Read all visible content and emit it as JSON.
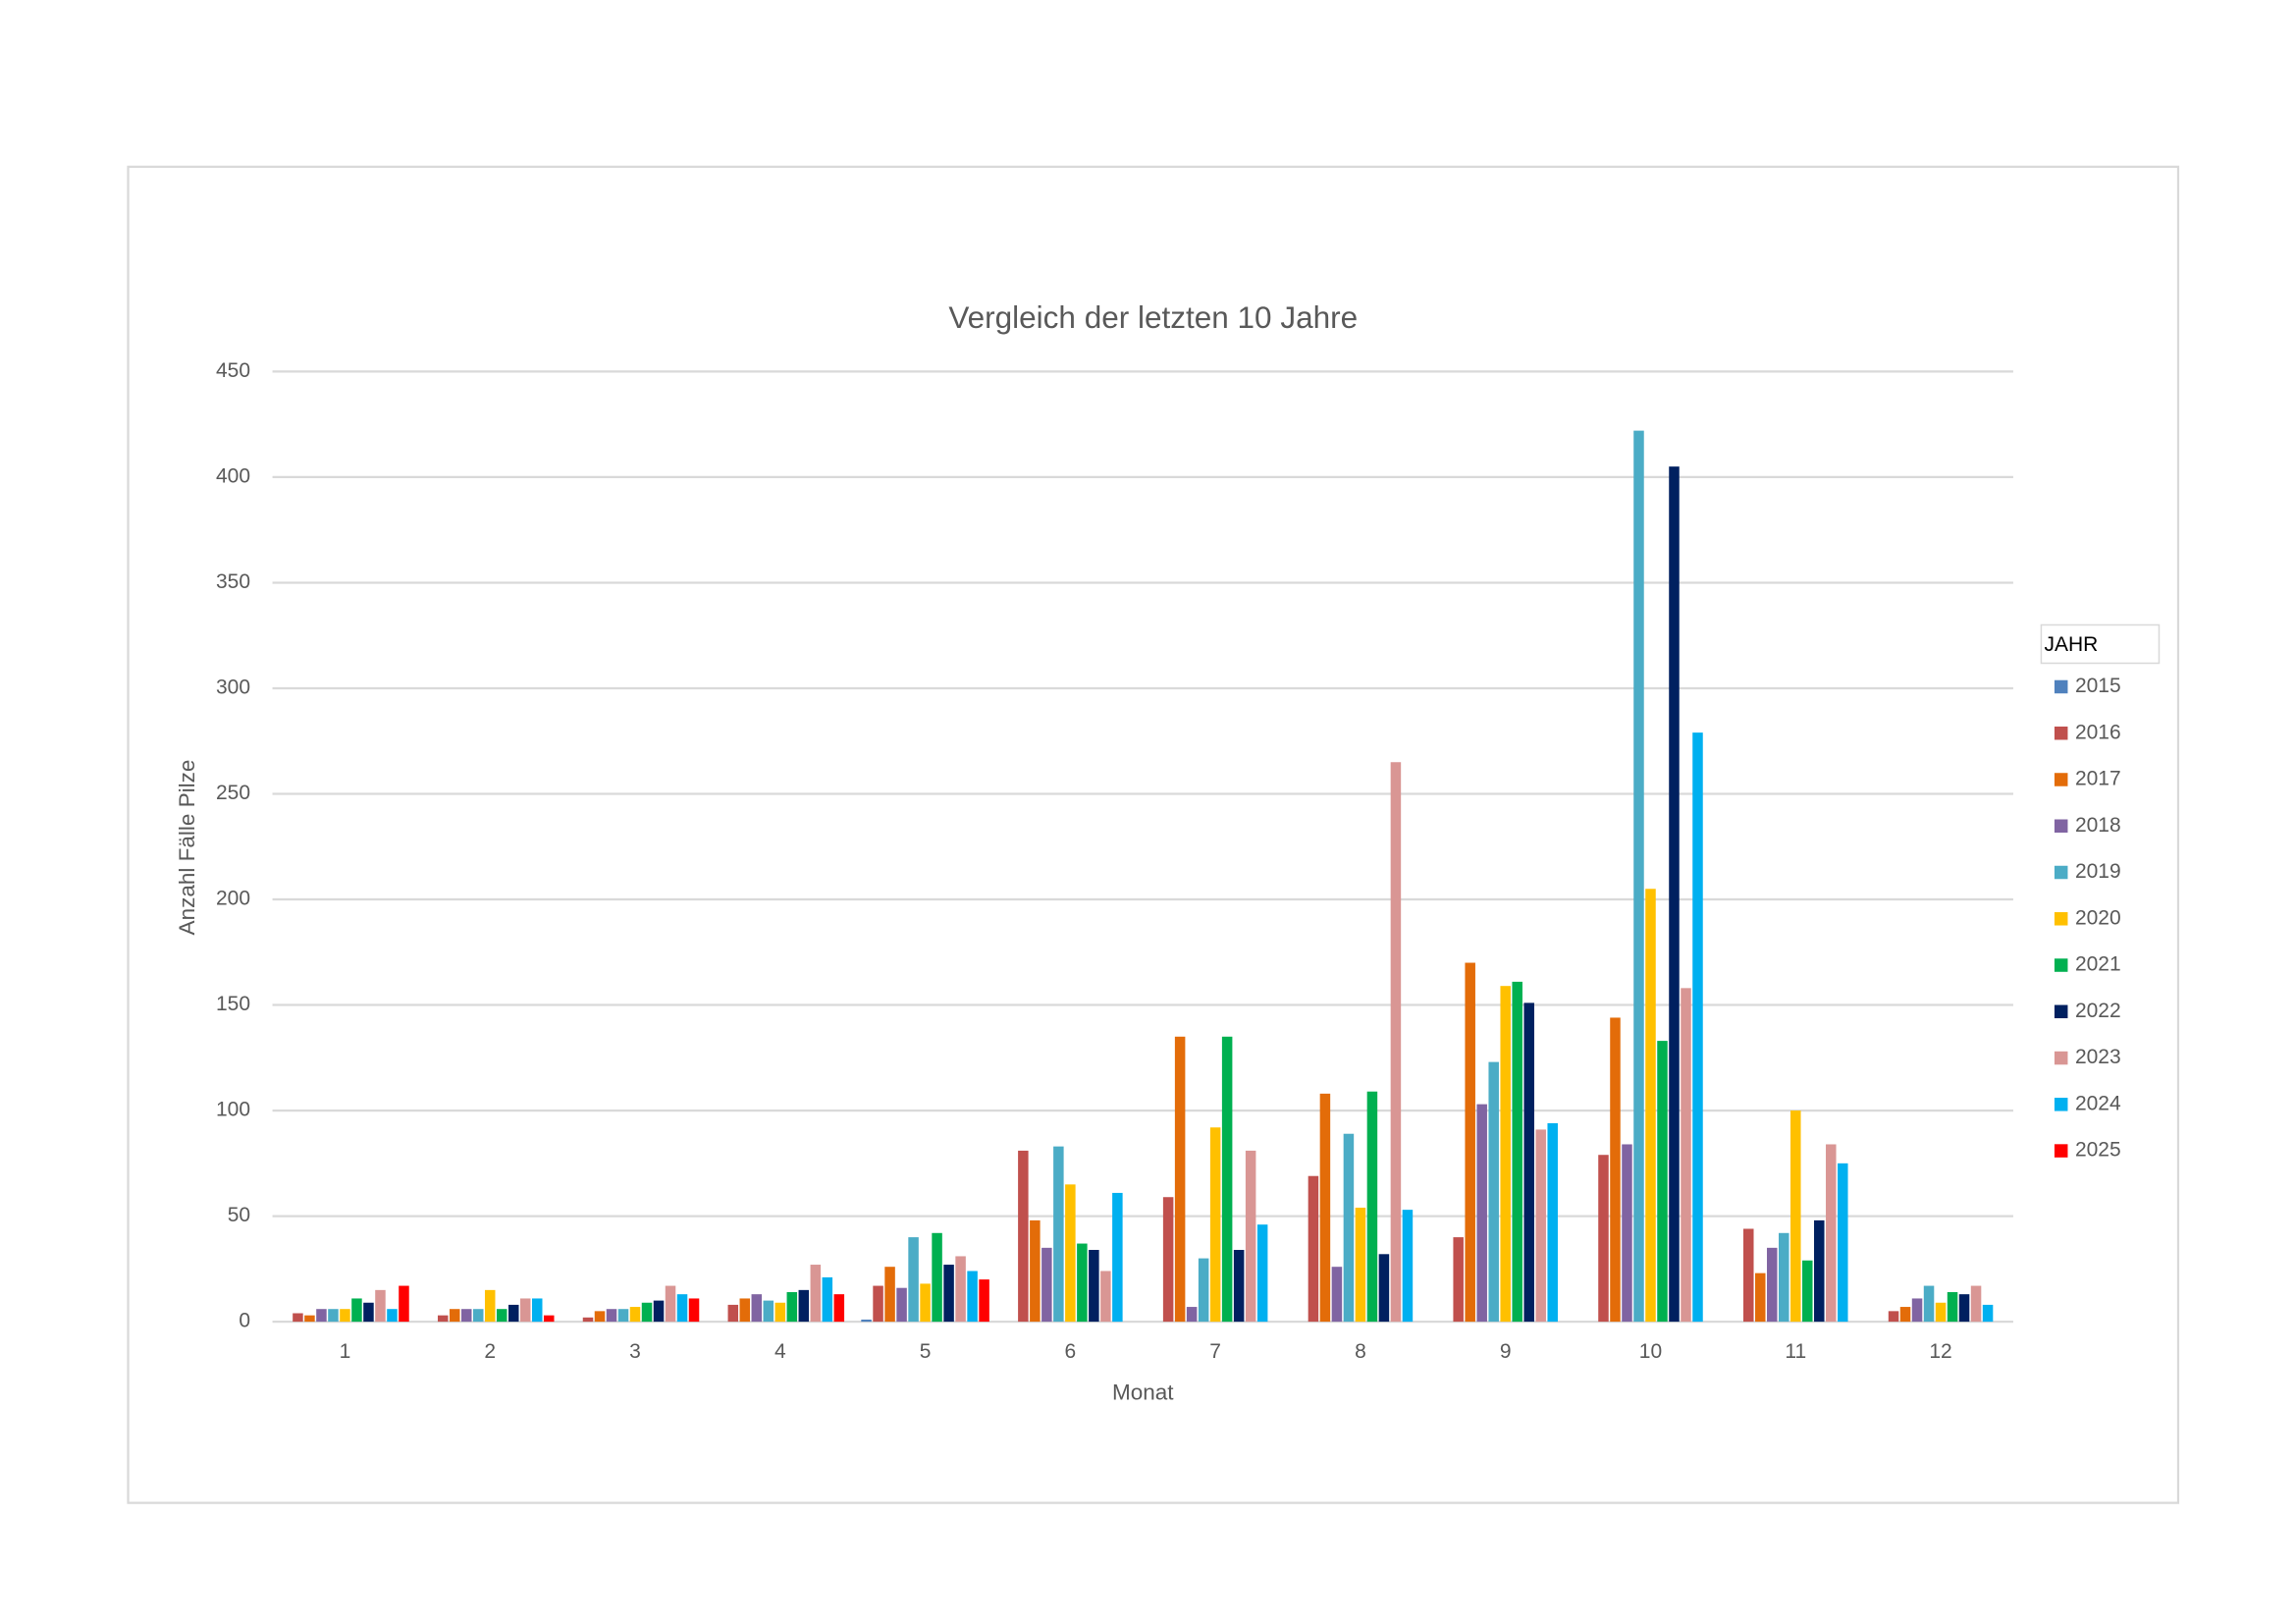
{
  "chart_data": {
    "type": "bar",
    "title": "Vergleich der letzten 10 Jahre",
    "x_label": "Monat",
    "y_label": "Anzahl Fälle Pilze",
    "legend_title": "JAHR",
    "legend_position": "right",
    "grid": true,
    "categories": [
      "1",
      "2",
      "3",
      "4",
      "5",
      "6",
      "7",
      "8",
      "9",
      "10",
      "11",
      "12"
    ],
    "ylim": [
      0,
      450
    ],
    "yticks": [
      0,
      50,
      100,
      150,
      200,
      250,
      300,
      350,
      400,
      450
    ],
    "series": [
      {
        "name": "2015",
        "color": "#4f81bd",
        "values": [
          null,
          null,
          null,
          null,
          1,
          null,
          null,
          null,
          null,
          null,
          null,
          null
        ]
      },
      {
        "name": "2016",
        "color": "#c0504d",
        "values": [
          4,
          3,
          2,
          8,
          17,
          81,
          59,
          69,
          40,
          79,
          44,
          5
        ]
      },
      {
        "name": "2017",
        "color": "#e36c09",
        "values": [
          3,
          6,
          5,
          11,
          26,
          48,
          135,
          108,
          170,
          144,
          23,
          7
        ]
      },
      {
        "name": "2018",
        "color": "#8064a2",
        "values": [
          6,
          6,
          6,
          13,
          16,
          35,
          7,
          26,
          103,
          84,
          35,
          11
        ]
      },
      {
        "name": "2019",
        "color": "#4bacc6",
        "values": [
          6,
          6,
          6,
          10,
          40,
          83,
          30,
          89,
          123,
          422,
          42,
          17
        ]
      },
      {
        "name": "2020",
        "color": "#ffc000",
        "values": [
          6,
          15,
          7,
          9,
          18,
          65,
          92,
          54,
          159,
          205,
          100,
          9
        ]
      },
      {
        "name": "2021",
        "color": "#00b050",
        "values": [
          11,
          6,
          9,
          14,
          42,
          37,
          135,
          109,
          161,
          133,
          29,
          14
        ]
      },
      {
        "name": "2022",
        "color": "#002060",
        "values": [
          9,
          8,
          10,
          15,
          27,
          34,
          34,
          32,
          151,
          405,
          48,
          13
        ]
      },
      {
        "name": "2023",
        "color": "#d99694",
        "values": [
          15,
          11,
          17,
          27,
          31,
          24,
          81,
          265,
          91,
          158,
          84,
          17
        ]
      },
      {
        "name": "2024",
        "color": "#00b0f0",
        "values": [
          6,
          11,
          13,
          21,
          24,
          61,
          46,
          53,
          94,
          279,
          75,
          8
        ]
      },
      {
        "name": "2025",
        "color": "#ff0000",
        "values": [
          17,
          3,
          11,
          13,
          20,
          null,
          null,
          null,
          null,
          null,
          null,
          null
        ]
      }
    ]
  }
}
